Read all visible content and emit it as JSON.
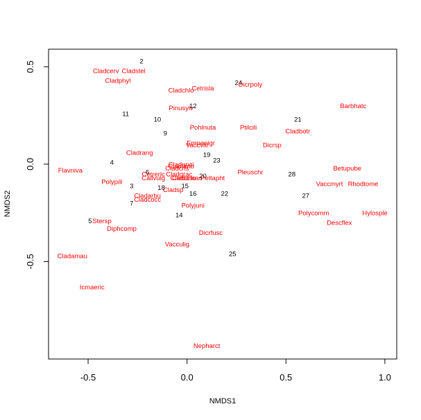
{
  "chart_data": {
    "type": "scatter",
    "xlabel": "NMDS1",
    "ylabel": "NMDS2",
    "xlim": [
      -0.7,
      1.06
    ],
    "ylim": [
      -1.0,
      0.59
    ],
    "xticks": [
      {
        "value": -0.5,
        "label": "-0.5"
      },
      {
        "value": 0.0,
        "label": "0.0"
      },
      {
        "value": 0.5,
        "label": "0.5"
      },
      {
        "value": 1.0,
        "label": "1.0"
      }
    ],
    "yticks": [
      {
        "value": -0.5,
        "label": "-0.5"
      },
      {
        "value": 0.0,
        "label": "0.0"
      },
      {
        "value": 0.5,
        "label": "0.5"
      }
    ],
    "species_color": "#ff0000",
    "site_color": "#000000",
    "sites": [
      {
        "label": "2",
        "x": -0.23,
        "y": 0.53
      },
      {
        "label": "24",
        "x": 0.26,
        "y": 0.42
      },
      {
        "label": "12",
        "x": 0.03,
        "y": 0.3
      },
      {
        "label": "11",
        "x": -0.31,
        "y": 0.26
      },
      {
        "label": "10",
        "x": -0.15,
        "y": 0.23
      },
      {
        "label": "21",
        "x": 0.56,
        "y": 0.23
      },
      {
        "label": "9",
        "x": -0.11,
        "y": 0.16
      },
      {
        "label": "19",
        "x": 0.1,
        "y": 0.05
      },
      {
        "label": "23",
        "x": 0.15,
        "y": 0.02
      },
      {
        "label": "4",
        "x": -0.38,
        "y": 0.01
      },
      {
        "label": "6",
        "x": -0.2,
        "y": -0.04
      },
      {
        "label": "20",
        "x": 0.08,
        "y": -0.06
      },
      {
        "label": "28",
        "x": 0.53,
        "y": -0.05
      },
      {
        "label": "3",
        "x": -0.28,
        "y": -0.11
      },
      {
        "label": "18",
        "x": -0.13,
        "y": -0.12
      },
      {
        "label": "15",
        "x": -0.01,
        "y": -0.11
      },
      {
        "label": "16",
        "x": 0.03,
        "y": -0.15
      },
      {
        "label": "22",
        "x": 0.19,
        "y": -0.15
      },
      {
        "label": "27",
        "x": 0.6,
        "y": -0.16
      },
      {
        "label": "7",
        "x": -0.28,
        "y": -0.2
      },
      {
        "label": "14",
        "x": -0.04,
        "y": -0.26
      },
      {
        "label": "5",
        "x": -0.49,
        "y": -0.29
      },
      {
        "label": "25",
        "x": 0.23,
        "y": -0.46
      }
    ],
    "species": [
      {
        "label": "Cladcerv",
        "x": -0.41,
        "y": 0.48
      },
      {
        "label": "Cladstel",
        "x": -0.27,
        "y": 0.48
      },
      {
        "label": "Cladphyl",
        "x": -0.35,
        "y": 0.43
      },
      {
        "label": "Cladchlo",
        "x": -0.03,
        "y": 0.38
      },
      {
        "label": "Cetrisla",
        "x": 0.08,
        "y": 0.39
      },
      {
        "label": "Dicrpoly",
        "x": 0.32,
        "y": 0.41
      },
      {
        "label": "Pinusylv",
        "x": -0.03,
        "y": 0.29
      },
      {
        "label": "Barbhatc",
        "x": 0.84,
        "y": 0.3
      },
      {
        "label": "Pohlnuta",
        "x": 0.08,
        "y": 0.19
      },
      {
        "label": "Ptilcili",
        "x": 0.31,
        "y": 0.19
      },
      {
        "label": "Cladbotr",
        "x": 0.56,
        "y": 0.17
      },
      {
        "label": "Empenigr",
        "x": 0.07,
        "y": 0.11
      },
      {
        "label": "Vaccviti",
        "x": 0.05,
        "y": 0.1
      },
      {
        "label": "Dicrsp",
        "x": 0.43,
        "y": 0.1
      },
      {
        "label": "Cladrang",
        "x": -0.24,
        "y": 0.06
      },
      {
        "label": "Cladunci",
        "x": -0.03,
        "y": 0.0
      },
      {
        "label": "Cladfimb",
        "x": -0.03,
        "y": -0.01
      },
      {
        "label": "Cladcris",
        "x": -0.05,
        "y": -0.02
      },
      {
        "label": "Flavniva",
        "x": -0.59,
        "y": -0.03
      },
      {
        "label": "Betupube",
        "x": 0.81,
        "y": -0.02
      },
      {
        "label": "Pleuschr",
        "x": 0.32,
        "y": -0.04
      },
      {
        "label": "Cetreric",
        "x": -0.17,
        "y": -0.05
      },
      {
        "label": "Cladgrac",
        "x": -0.04,
        "y": -0.05
      },
      {
        "label": "Cladchlo",
        "x": -0.02,
        "y": -0.07
      },
      {
        "label": "Callvulg",
        "x": -0.17,
        "y": -0.07
      },
      {
        "label": "Cladamau",
        "x": 0.0,
        "y": -0.07
      },
      {
        "label": "Peltapht",
        "x": 0.13,
        "y": -0.07
      },
      {
        "label": "Polypili",
        "x": -0.38,
        "y": -0.09
      },
      {
        "label": "Vaccmyrt",
        "x": 0.72,
        "y": -0.1
      },
      {
        "label": "Rhodtome",
        "x": 0.89,
        "y": -0.1
      },
      {
        "label": "Cladsp",
        "x": -0.07,
        "y": -0.13
      },
      {
        "label": "Cladarbu",
        "x": -0.2,
        "y": -0.16
      },
      {
        "label": "Cladcocc",
        "x": -0.2,
        "y": -0.18
      },
      {
        "label": "Polyjuni",
        "x": 0.03,
        "y": -0.21
      },
      {
        "label": "Polycomm",
        "x": 0.64,
        "y": -0.25
      },
      {
        "label": "Hylosple",
        "x": 0.95,
        "y": -0.25
      },
      {
        "label": "Descflex",
        "x": 0.77,
        "y": -0.3
      },
      {
        "label": "Stersp",
        "x": -0.43,
        "y": -0.29
      },
      {
        "label": "Diphcomp",
        "x": -0.33,
        "y": -0.33
      },
      {
        "label": "Dicrfusc",
        "x": 0.12,
        "y": -0.35
      },
      {
        "label": "Vacculig",
        "x": -0.05,
        "y": -0.41
      },
      {
        "label": "Cladamau",
        "x": -0.58,
        "y": -0.47
      },
      {
        "label": "Icmaeric",
        "x": -0.48,
        "y": -0.63
      },
      {
        "label": "Nepharct",
        "x": 0.1,
        "y": -0.93
      }
    ]
  }
}
